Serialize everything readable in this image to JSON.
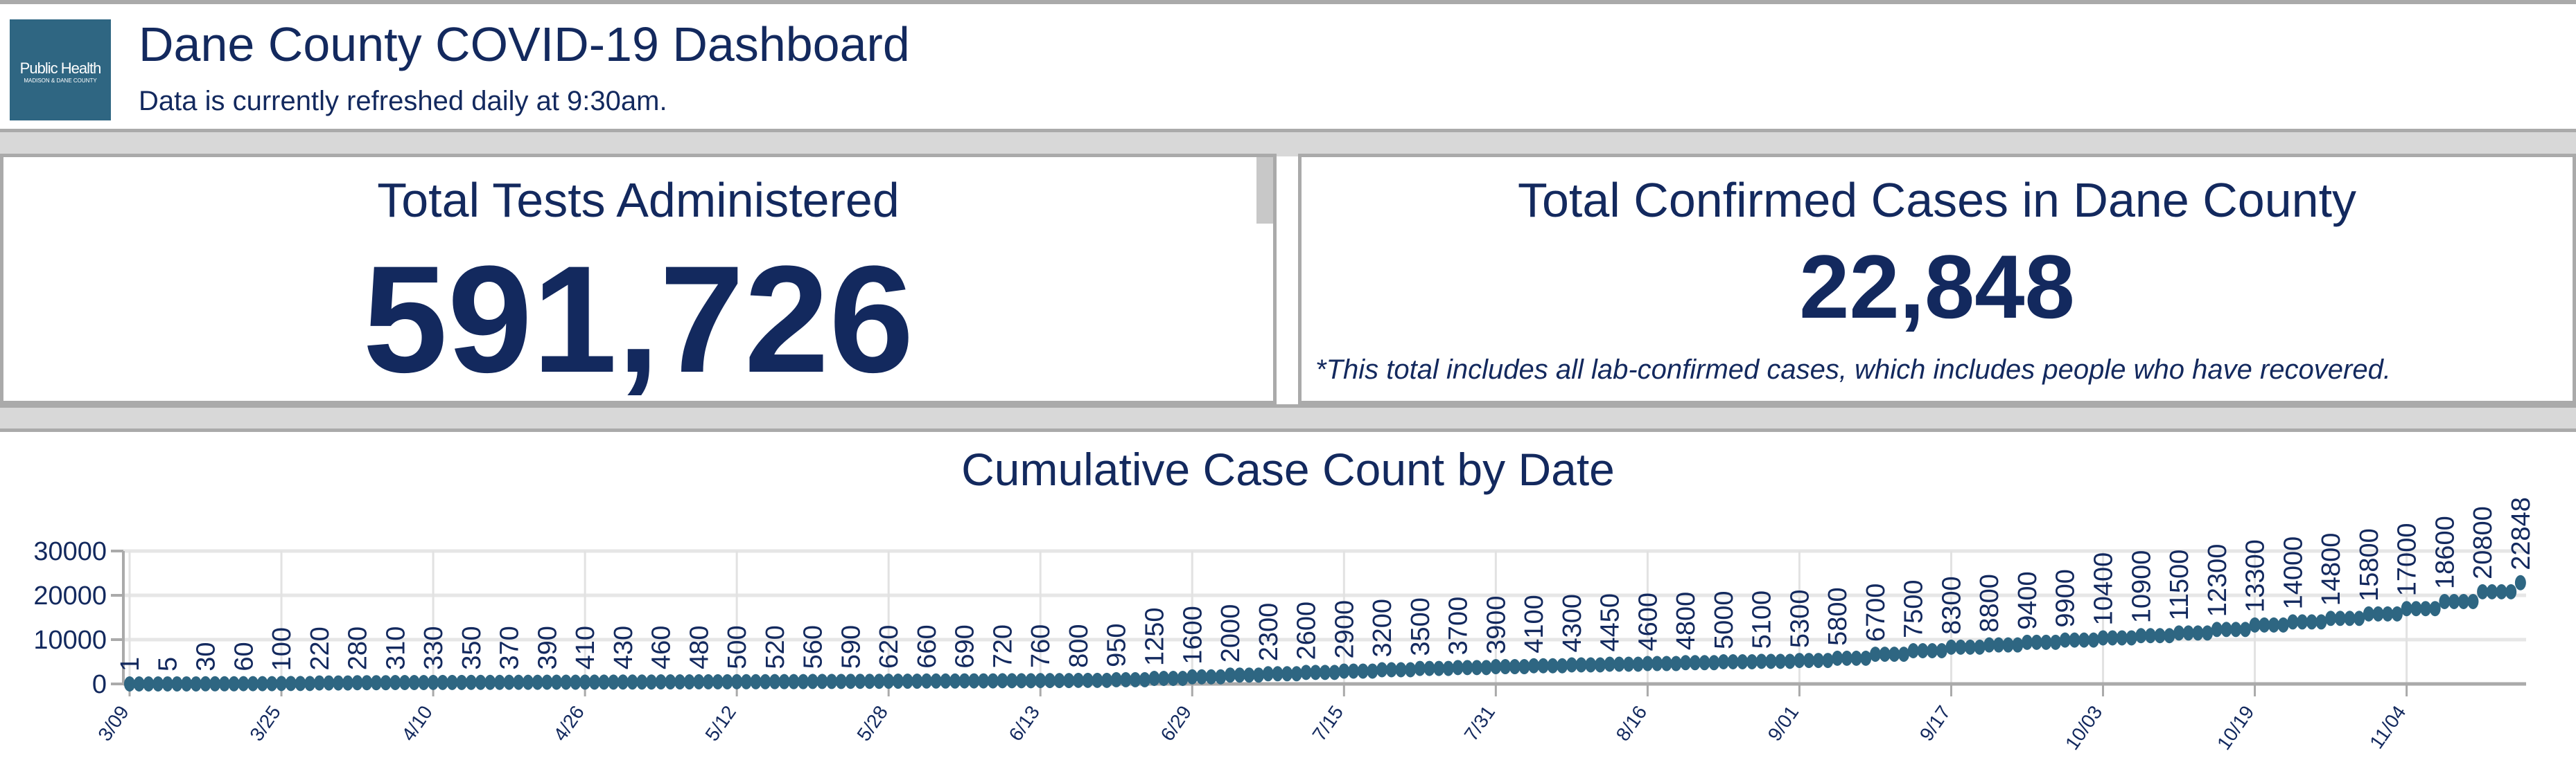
{
  "header": {
    "logo_text": "Public Health",
    "logo_subtext": "MADISON & DANE COUNTY",
    "title": "Dane County COVID-19 Dashboard",
    "subtitle": "Data is currently refreshed daily at 9:30am."
  },
  "tests_card": {
    "title": "Total Tests Administered",
    "value": "591,726"
  },
  "cases_card": {
    "title": "Total Confirmed Cases in Dane County",
    "value": "22,848",
    "footnote": "*This total includes all lab-confirmed cases, which includes people who have recovered."
  },
  "colors": {
    "navy": "#13295e",
    "point": "#2e6682",
    "logo_bg": "#2f6682"
  },
  "chart_data": {
    "type": "scatter",
    "title": "Cumulative Case Count by Date",
    "xlabel": "",
    "ylabel": "",
    "ylim": [
      0,
      30000
    ],
    "yticks": [
      0,
      10000,
      20000,
      30000
    ],
    "xticks": [
      "3/09",
      "3/25",
      "4/10",
      "4/26",
      "5/12",
      "5/28",
      "6/13",
      "6/29",
      "7/15",
      "7/31",
      "8/16",
      "9/01",
      "9/17",
      "10/03",
      "10/19",
      "11/04"
    ],
    "grid": true,
    "data_labels": true,
    "x": [
      "3/09",
      "3/13",
      "3/17",
      "3/21",
      "3/25",
      "3/29",
      "4/02",
      "4/06",
      "4/10",
      "4/14",
      "4/18",
      "4/22",
      "4/26",
      "4/30",
      "5/04",
      "5/08",
      "5/12",
      "5/16",
      "5/20",
      "5/24",
      "5/28",
      "6/01",
      "6/05",
      "6/09",
      "6/13",
      "6/17",
      "6/21",
      "6/25",
      "6/29",
      "7/03",
      "7/07",
      "7/11",
      "7/15",
      "7/19",
      "7/23",
      "7/27",
      "7/31",
      "8/04",
      "8/08",
      "8/12",
      "8/16",
      "8/20",
      "8/24",
      "8/28",
      "9/01",
      "9/05",
      "9/09",
      "9/13",
      "9/17",
      "9/21",
      "9/25",
      "9/29",
      "10/03",
      "10/07",
      "10/11",
      "10/15",
      "10/19",
      "10/23",
      "10/27",
      "10/31",
      "11/04",
      "11/08",
      "11/12",
      "11/16"
    ],
    "values": [
      1,
      5,
      30,
      60,
      100,
      220,
      280,
      310,
      330,
      350,
      370,
      390,
      410,
      430,
      460,
      480,
      500,
      520,
      560,
      590,
      620,
      660,
      690,
      720,
      760,
      800,
      950,
      1250,
      1600,
      2000,
      2300,
      2600,
      2900,
      3200,
      3500,
      3700,
      3900,
      4100,
      4300,
      4450,
      4600,
      4800,
      5000,
      5100,
      5300,
      5800,
      6700,
      7500,
      8300,
      8800,
      9400,
      9900,
      10400,
      10900,
      11500,
      12300,
      13300,
      14000,
      14800,
      15800,
      17000,
      18600,
      20800,
      22848
    ]
  }
}
